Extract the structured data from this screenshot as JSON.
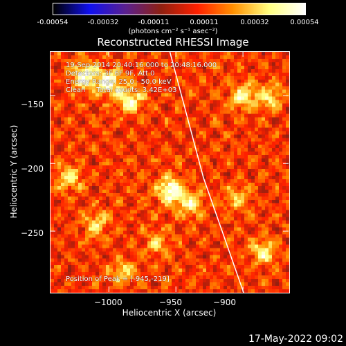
{
  "colorbar": {
    "ticks": [
      "-0.00054",
      "-0.00032",
      "-0.00011",
      "0.00011",
      "0.00032",
      "0.00054"
    ],
    "tick_values": [
      -0.00054,
      -0.00032,
      -0.00011,
      0.00011,
      0.00032,
      0.00054
    ],
    "range": [
      -0.00054,
      0.00054
    ],
    "unit_label": "(photons cm⁻² s⁻¹ asec⁻²)"
  },
  "title": "Reconstructed RHESSI Image",
  "info": {
    "line1": "19-Sep-2014 20:40:16.000 to 20:48:16.000",
    "line2": "Detectors: 3F 6F 9F, Att 0",
    "line3": "Energy Range: 25.0 - 50.0 keV",
    "line4": "Clean     Total counts: 3.42E+03",
    "peak": "Position of Peak = [-945,-219]"
  },
  "timestamp": "17-May-2022 09:02",
  "chart_data": {
    "type": "heatmap",
    "title": "Reconstructed RHESSI Image",
    "xlabel": "Heliocentric X (arcsec)",
    "ylabel": "Heliocentric Y (arcsec)",
    "xlim": [
      -1044,
      -866
    ],
    "ylim": [
      -295,
      -117
    ],
    "xticks": [
      -1000,
      -950,
      -900
    ],
    "xtick_labels": [
      "−1000",
      "−950",
      "−900"
    ],
    "yticks": [
      -150,
      -200,
      -250
    ],
    "ytick_labels": [
      "−150",
      "−200",
      "−250"
    ],
    "limb": [
      [
        -955,
        -117
      ],
      [
        -930,
        -210
      ],
      [
        -900,
        -295
      ]
    ],
    "hotspots": [
      {
        "x": -1018,
        "y": -135,
        "v": 0.00054
      },
      {
        "x": -1000,
        "y": -140,
        "v": 0.0005
      },
      {
        "x": -985,
        "y": -152,
        "v": 0.00045
      },
      {
        "x": -1030,
        "y": -210,
        "v": 0.00035
      },
      {
        "x": -955,
        "y": -219,
        "v": 0.00054
      },
      {
        "x": -940,
        "y": -230,
        "v": 0.0004
      },
      {
        "x": -900,
        "y": -150,
        "v": 0.0004
      },
      {
        "x": -880,
        "y": -150,
        "v": 0.00035
      },
      {
        "x": -1010,
        "y": -245,
        "v": 0.00032
      },
      {
        "x": -885,
        "y": -265,
        "v": 0.00038
      },
      {
        "x": -905,
        "y": -225,
        "v": 0.00028
      },
      {
        "x": -965,
        "y": -258,
        "v": 0.00025
      },
      {
        "x": -990,
        "y": -280,
        "v": 0.0003
      }
    ],
    "colorscale": [
      "#000000",
      "#1010f0",
      "#5a2090",
      "#902010",
      "#ff2000",
      "#ff9000",
      "#ffff80",
      "#ffffff"
    ]
  },
  "colors": {
    "background": "#000000",
    "text": "#ffffff",
    "limb_line": "#ffffff"
  }
}
